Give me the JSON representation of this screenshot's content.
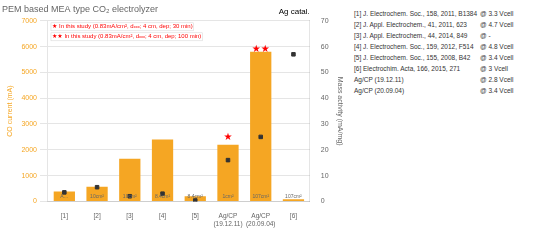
{
  "chart_data": {
    "type": "bar",
    "title": "PEM based MEA type CO₂ electrolyzer",
    "subtitle": "Ag catal.",
    "categories": [
      "[1]",
      "[2]",
      "[3]",
      "[4]",
      "[5]",
      "Ag/CP\n(19.12.11)",
      "Ag/CP\n(20.09.04)",
      "[6]"
    ],
    "series": [
      {
        "type": "bar",
        "color": "#F5A623",
        "values": [
          380,
          570,
          1650,
          2400,
          200,
          2200,
          5800,
          80
        ]
      },
      {
        "type": "line",
        "line_style": "none",
        "marker": "square",
        "color": "#333333",
        "axis": "y2",
        "values": [
          3.5,
          5.5,
          2.0,
          3.0,
          0.35,
          16.0,
          25.0,
          57.0
        ]
      }
    ],
    "ylabel": "CO current (mA)",
    "y2label": "Mass activity (mA/mg)",
    "ylim": [
      0,
      7000
    ],
    "yticks": [
      0,
      1000,
      2000,
      3000,
      4000,
      5000,
      6000,
      7000
    ],
    "y2lim": [
      0,
      70
    ],
    "y2ticks": [
      0,
      10,
      20,
      30,
      40,
      50,
      60,
      70
    ],
    "grid": true,
    "area_labels": [
      "A…",
      "10cm²",
      "10cm²",
      "8.4cm²",
      "8.4cm²",
      "1cm²",
      "107cm²",
      "107cm²"
    ],
    "annotations": [
      {
        "text": "★",
        "x": "Ag/CP\n(19.12.11)",
        "y": 2500,
        "color": "red"
      },
      {
        "text": "★★",
        "x": "Ag/CP\n(20.09.04)",
        "y": 5900,
        "color": "red"
      }
    ],
    "notes": [
      {
        "text": "★ In this study (0.83mA/cm², dₓₓₓ; 4 cm, dep; 30 min)",
        "color": "red"
      },
      {
        "text": "★★ In this study (0.83mA/cm², dₓₓₓ; 4 cm, dep; 100 min)",
        "color": "red"
      }
    ],
    "references": [
      {
        "text": "[1] J. Electrochem. Soc., 158, 2011, B1384",
        "voltage": "@ 3.3 Vcell"
      },
      {
        "text": "[2] J. Appl. Electrochem., 41, 2011, 623",
        "voltage": "@ 4.7 Vcell"
      },
      {
        "text": "[3] J. Appl. Electrochem., 44, 2014, 849",
        "voltage": "@ -"
      },
      {
        "text": "[4] J. Electrochem. Soc., 159, 2012, F514",
        "voltage": "@ 4.8 Vcell"
      },
      {
        "text": "[5] J. Electrochem. Soc., 155, 2008, B42",
        "voltage": "@ 3.4 Vcell"
      },
      {
        "text": "[6] Electrochim. Acta, 166, 2015, 271",
        "voltage": "@ 3 Vcell"
      },
      {
        "text": "Ag/CP (19.12.11)",
        "voltage": "@ 2.8 Vcell"
      },
      {
        "text": "Ag/CP (20.09.04)",
        "voltage": "@ 3.4 Vcell"
      }
    ]
  }
}
